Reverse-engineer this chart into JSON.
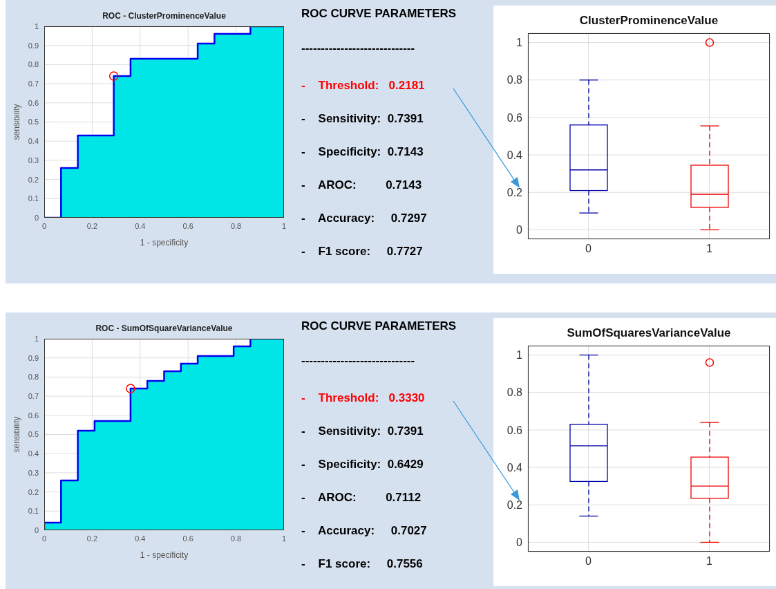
{
  "chart_data": [
    {
      "type": "area",
      "title": "ROC - ClusterProminenceValue",
      "xlabel": "1 - specificity",
      "ylabel": "sensibility",
      "x": [
        0,
        0.07,
        0.07,
        0.14,
        0.14,
        0.29,
        0.29,
        0.36,
        0.36,
        0.64,
        0.64,
        0.71,
        0.71,
        0.86,
        0.86,
        1
      ],
      "xlim": [
        0,
        1
      ],
      "ylim": [
        0,
        1
      ],
      "xticks": [
        0,
        0.2,
        0.4,
        0.6,
        0.8,
        1
      ],
      "yticks": [
        0,
        0.1,
        0.2,
        0.3,
        0.4,
        0.5,
        0.6,
        0.7,
        0.8,
        0.9,
        1
      ],
      "grid": true,
      "series": [
        {
          "type": "area",
          "color": "#00e5e5",
          "values": [
            0,
            0,
            0.26,
            0.26,
            0.43,
            0.43,
            0.74,
            0.74,
            0.83,
            0.83,
            0.91,
            0.91,
            0.96,
            0.96,
            1,
            1
          ]
        },
        {
          "type": "scatter",
          "color": "#ff0000",
          "marker": "circle",
          "x": [
            0.29
          ],
          "values": [
            0.74
          ]
        }
      ]
    },
    {
      "type": "other",
      "title": "ROC CURVE PARAMETERS",
      "annotations": [
        "-----------------------------",
        "-    Threshold:   0.2181",
        "-    Sensitivity:  0.7391",
        "-    Specificity:  0.7143",
        "-    AROC:         0.7143",
        "-    Accuracy:     0.7297",
        "-    F1 score:     0.7727"
      ],
      "colors": [
        "#000000",
        "#ff0000",
        "#000000",
        "#000000",
        "#000000",
        "#000000",
        "#000000"
      ]
    },
    {
      "type": "box",
      "title": "ClusterProminenceValue",
      "categories": [
        "0",
        "1"
      ],
      "colors": [
        "#0000aa",
        "#ee0000"
      ],
      "ylim": [
        -0.05,
        1.05
      ],
      "yticks": [
        0,
        0.2,
        0.4,
        0.6,
        0.8,
        1
      ],
      "grid": true,
      "boxes": [
        {
          "low": 0.09,
          "q1": 0.21,
          "median": 0.32,
          "q3": 0.56,
          "high": 0.8
        },
        {
          "low": 0,
          "q1": 0.12,
          "median": 0.19,
          "q3": 0.345,
          "high": 0.555,
          "outliers": [
            1
          ]
        }
      ]
    },
    {
      "type": "area",
      "title": "ROC - SumOfSquareVarianceValue",
      "xlabel": "1 - specificity",
      "ylabel": "sensibility",
      "x": [
        0,
        0,
        0.07,
        0.07,
        0.14,
        0.14,
        0.21,
        0.21,
        0.36,
        0.36,
        0.43,
        0.43,
        0.5,
        0.5,
        0.57,
        0.57,
        0.64,
        0.64,
        0.79,
        0.79,
        0.86,
        0.86,
        1
      ],
      "xlim": [
        0,
        1
      ],
      "ylim": [
        0,
        1
      ],
      "xticks": [
        0,
        0.2,
        0.4,
        0.6,
        0.8,
        1
      ],
      "yticks": [
        0,
        0.1,
        0.2,
        0.3,
        0.4,
        0.5,
        0.6,
        0.7,
        0.8,
        0.9,
        1
      ],
      "grid": true,
      "series": [
        {
          "type": "area",
          "color": "#00e5e5",
          "values": [
            0,
            0.04,
            0.04,
            0.26,
            0.26,
            0.52,
            0.52,
            0.57,
            0.57,
            0.74,
            0.74,
            0.78,
            0.78,
            0.83,
            0.83,
            0.87,
            0.87,
            0.91,
            0.91,
            0.96,
            0.96,
            1,
            1
          ]
        },
        {
          "type": "scatter",
          "color": "#ff0000",
          "marker": "circle",
          "x": [
            0.36
          ],
          "values": [
            0.74
          ]
        }
      ]
    },
    {
      "type": "other",
      "title": "ROC CURVE PARAMETERS",
      "annotations": [
        "-----------------------------",
        "-    Threshold:   0.3330",
        "-    Sensitivity:  0.7391",
        "-    Specificity:  0.6429",
        "-    AROC:         0.7112",
        "-    Accuracy:     0.7027",
        "-    F1 score:     0.7556"
      ],
      "colors": [
        "#000000",
        "#ff0000",
        "#000000",
        "#000000",
        "#000000",
        "#000000",
        "#000000"
      ]
    },
    {
      "type": "box",
      "title": "SumOfSquaresVarianceValue",
      "categories": [
        "0",
        "1"
      ],
      "colors": [
        "#0000aa",
        "#ee0000"
      ],
      "ylim": [
        -0.05,
        1.05
      ],
      "yticks": [
        0,
        0.2,
        0.4,
        0.6,
        0.8,
        1
      ],
      "grid": true,
      "boxes": [
        {
          "low": 0.14,
          "q1": 0.325,
          "median": 0.515,
          "q3": 0.63,
          "high": 1
        },
        {
          "low": 0,
          "q1": 0.235,
          "median": 0.3,
          "q3": 0.455,
          "high": 0.64,
          "outliers": [
            0.96
          ]
        }
      ]
    }
  ]
}
